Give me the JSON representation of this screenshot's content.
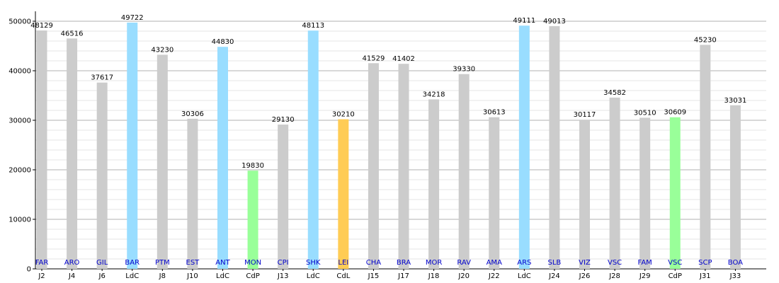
{
  "chart_data": {
    "type": "bar",
    "title": "",
    "xlabel": "",
    "ylabel": "",
    "ylim": [
      0,
      52000
    ],
    "yticks": [
      0,
      10000,
      20000,
      30000,
      40000,
      50000
    ],
    "grid": true,
    "legend": "none",
    "categories": [
      "J2",
      "J4",
      "J6",
      "LdC",
      "J8",
      "J10",
      "LdC",
      "CdP",
      "J13",
      "LdC",
      "CdL",
      "J15",
      "J17",
      "J18",
      "J20",
      "J22",
      "LdC",
      "J24",
      "J26",
      "J28",
      "J29",
      "CdP",
      "J31",
      "J33"
    ],
    "opponents": [
      "FAR",
      "ARO",
      "GIL",
      "BAR",
      "PTM",
      "EST",
      "ANT",
      "MON",
      "CPI",
      "SHK",
      "LEI",
      "CHA",
      "BRA",
      "MOR",
      "RAV",
      "AMA",
      "ARS",
      "SLB",
      "VIZ",
      "VSC",
      "FAM",
      "VSC",
      "SCP",
      "BOA"
    ],
    "values": [
      48129,
      46516,
      37617,
      49722,
      43230,
      30306,
      44830,
      19830,
      29130,
      48113,
      30210,
      41529,
      41402,
      34218,
      39330,
      30613,
      49111,
      49013,
      30117,
      34582,
      30510,
      30609,
      45230,
      33031
    ],
    "competition_colors": {
      "J": "#cccccc",
      "LdC": "#99ddff",
      "CdP": "#99ff99",
      "CdL": "#ffcc55"
    }
  }
}
